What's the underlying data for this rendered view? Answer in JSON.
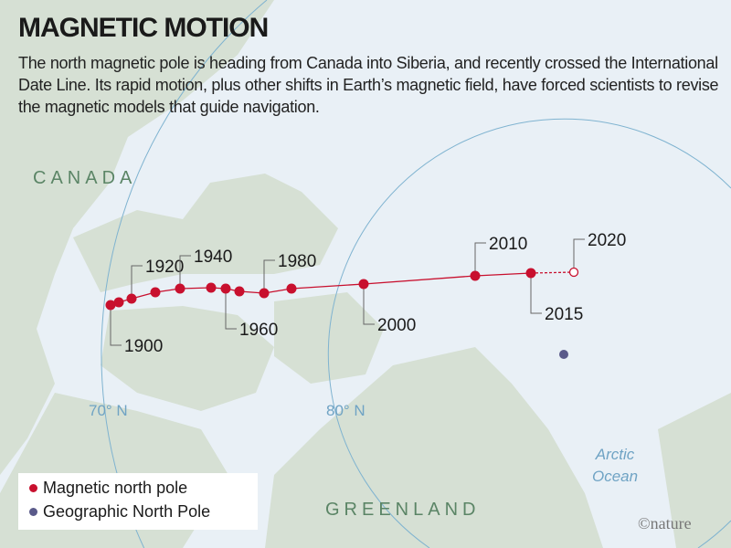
{
  "header": {
    "title": "MAGNETIC MOTION",
    "subtitle": "The north magnetic pole is heading from Canada into Siberia, and recently crossed the International Date Line. Its rapid motion, plus other shifts in Earth’s magnetic field, have forced scientists to revise the magnetic models that guide navigation."
  },
  "map": {
    "regions": {
      "canada": "CANADA",
      "greenland": "GREENLAND",
      "ocean_line1": "Arctic",
      "ocean_line2": "Ocean"
    },
    "latitudes": {
      "lat70": "70° N",
      "lat80": "80° N"
    },
    "year_labels": [
      "1900",
      "1920",
      "1940",
      "1960",
      "1980",
      "2000",
      "2010",
      "2015",
      "2020"
    ],
    "colors": {
      "magnetic": "#c8102e",
      "geographic": "#5a5a8a",
      "land": "#d6e0d4",
      "water": "#e9f0f6",
      "latitude_line": "#7fb3d0"
    },
    "projected_point": "2020"
  },
  "legend": {
    "magnetic": "Magnetic north pole",
    "geographic": "Geographic North Pole"
  },
  "credit": "©nature"
}
